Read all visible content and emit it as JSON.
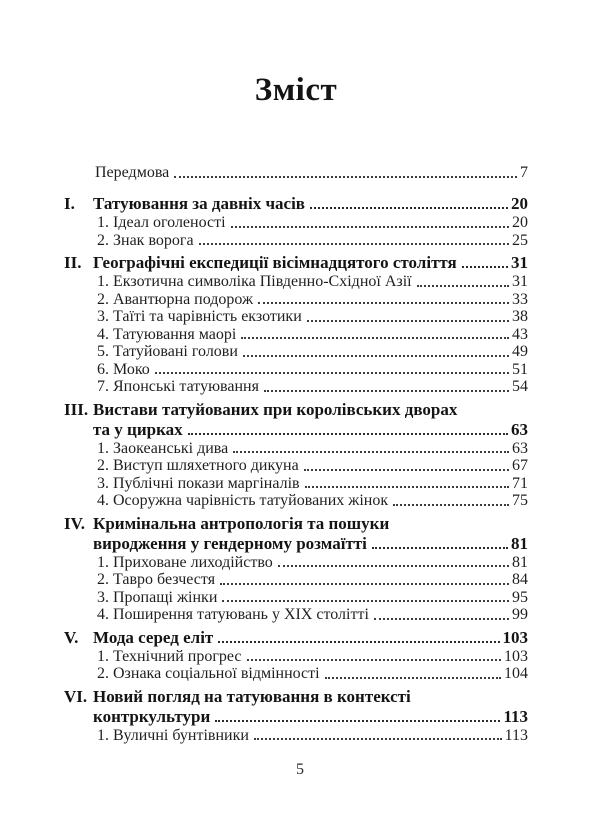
{
  "page": {
    "title": "Зміст",
    "page_number": "5",
    "preface": {
      "label": "Передмова",
      "page": "7"
    },
    "chapters": [
      {
        "numeral": "I.",
        "title_lines": [
          "Татуювання за давніх часів"
        ],
        "page": "20",
        "items": [
          {
            "label": "1. Ідеал оголеності",
            "page": "20"
          },
          {
            "label": "2. Знак ворога",
            "page": "25"
          }
        ]
      },
      {
        "numeral": "II.",
        "title_lines": [
          "Географічні експедиції вісімнадцятого століття"
        ],
        "page": "31",
        "items": [
          {
            "label": "1. Екзотична символіка Південно-Східної Азії",
            "page": "31"
          },
          {
            "label": "2. Авантюрна подорож",
            "page": "33"
          },
          {
            "label": "3. Таїті та чарівність екзотики",
            "page": "38"
          },
          {
            "label": "4. Татуювання маорі",
            "page": "43"
          },
          {
            "label": "5. Татуйовані голови",
            "page": "49"
          },
          {
            "label": "6. Моко",
            "page": "51"
          },
          {
            "label": "7. Японські татуювання",
            "page": "54"
          }
        ]
      },
      {
        "numeral": "III.",
        "title_lines": [
          "Вистави татуйованих при королівських дворах",
          "та у цирках"
        ],
        "page": "63",
        "items": [
          {
            "label": "1. Заокеанські дива",
            "page": "63"
          },
          {
            "label": "2. Виступ шляхетного дикуна",
            "page": "67"
          },
          {
            "label": "3. Публічні покази маргіналів",
            "page": "71"
          },
          {
            "label": "4. Осоружна чарівність татуйованих жінок",
            "page": "75"
          }
        ]
      },
      {
        "numeral": "IV.",
        "title_lines": [
          "Кримінальна антропологія та пошуки",
          "виродження у гендерному розмаїтті"
        ],
        "page": "81",
        "items": [
          {
            "label": "1. Приховане лиходійство",
            "page": "81"
          },
          {
            "label": "2. Тавро безчестя",
            "page": "84"
          },
          {
            "label": "3. Пропащі жінки",
            "page": "95"
          },
          {
            "label": "4. Поширення татуювань у XIX столітті",
            "page": "99"
          }
        ]
      },
      {
        "numeral": "V.",
        "title_lines": [
          "Мода серед еліт"
        ],
        "page": "103",
        "items": [
          {
            "label": "1. Технічний прогрес",
            "page": "103"
          },
          {
            "label": "2. Ознака соціальної відмінності",
            "page": "104"
          }
        ]
      },
      {
        "numeral": "VI.",
        "title_lines": [
          "Новий погляд на татуювання в контексті",
          "контркультури"
        ],
        "page": "113",
        "items": [
          {
            "label": "1. Вуличні бунтівники",
            "page": "113"
          }
        ]
      }
    ]
  }
}
